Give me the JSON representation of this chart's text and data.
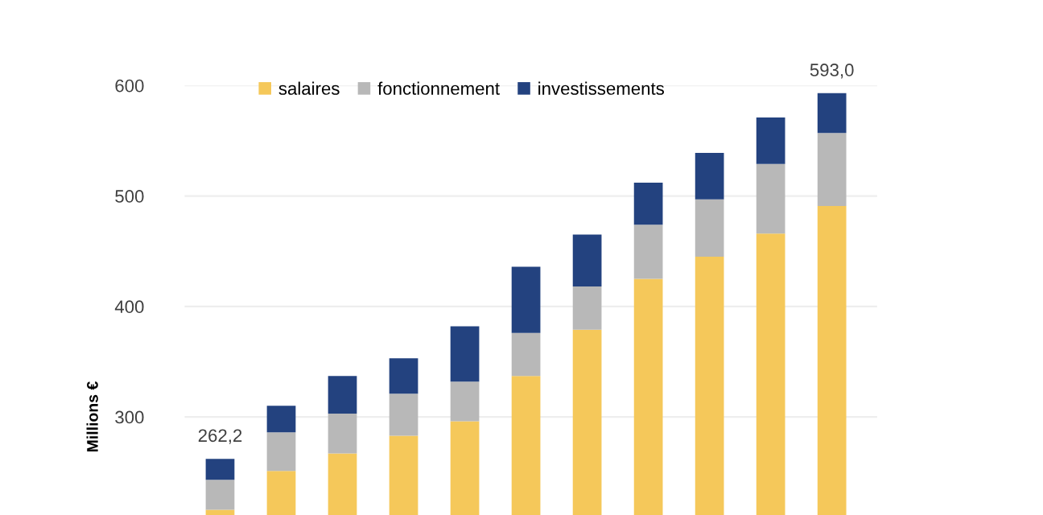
{
  "chart_data": {
    "type": "bar",
    "stacked": true,
    "ylabel": "Millions €",
    "categories": [
      null,
      null,
      null,
      null,
      null,
      null,
      null,
      null,
      null,
      null,
      null
    ],
    "series": [
      {
        "name": "salaires",
        "color": "#f5c85a",
        "values": [
          216,
          251,
          267,
          283,
          296,
          337,
          379,
          425,
          445,
          466,
          491
        ]
      },
      {
        "name": "fonctionnement",
        "color": "#b8b8b8",
        "values": [
          27,
          35,
          36,
          38,
          36,
          39,
          39,
          49,
          52,
          63,
          66
        ]
      },
      {
        "name": "investissements",
        "color": "#23427f",
        "values": [
          19,
          24,
          34,
          32,
          50,
          60,
          47,
          38,
          42,
          42,
          36
        ]
      }
    ],
    "totals": [
      "262,2",
      null,
      null,
      null,
      null,
      null,
      null,
      null,
      null,
      null,
      "593,0"
    ],
    "ylim": [
      0,
      600
    ],
    "yticks": [
      300,
      400,
      500,
      600
    ],
    "grid": "y",
    "legend": "top"
  }
}
